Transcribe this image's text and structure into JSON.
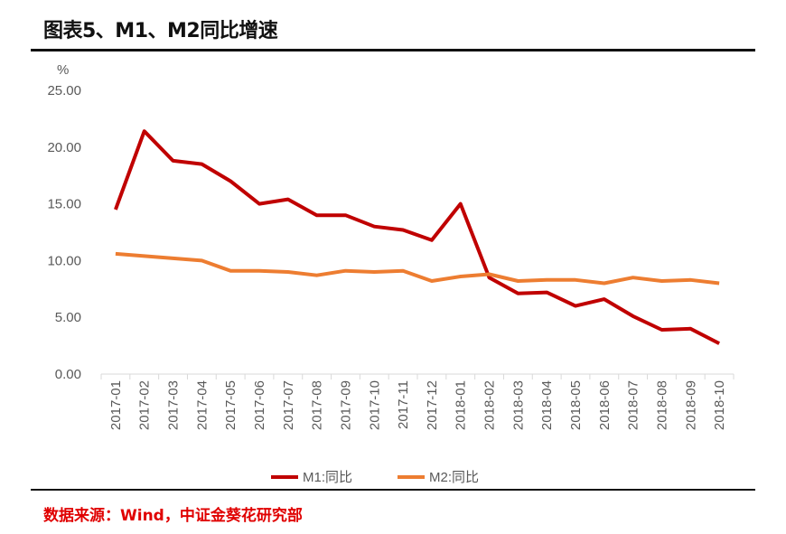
{
  "title": "图表5、M1、M2同比增速",
  "source": "数据来源：Wind，中证金葵花研究部",
  "chart_data": {
    "type": "line",
    "title": "图表5、M1、M2同比增速",
    "ylabel": "%",
    "xlabel": "",
    "ylim": [
      0,
      25
    ],
    "yticks": [
      "0.00",
      "5.00",
      "10.00",
      "15.00",
      "20.00",
      "25.00"
    ],
    "grid": false,
    "legend": "bottom",
    "categories": [
      "2017-01",
      "2017-02",
      "2017-03",
      "2017-04",
      "2017-05",
      "2017-06",
      "2017-07",
      "2017-08",
      "2017-09",
      "2017-10",
      "2017-11",
      "2017-12",
      "2018-01",
      "2018-02",
      "2018-03",
      "2018-04",
      "2018-05",
      "2018-06",
      "2018-07",
      "2018-08",
      "2018-09",
      "2018-10"
    ],
    "series": [
      {
        "name": "M1:同比",
        "color": "#c00000",
        "values": [
          14.5,
          21.4,
          18.8,
          18.5,
          17.0,
          15.0,
          15.4,
          14.0,
          14.0,
          13.0,
          12.7,
          11.8,
          15.0,
          8.5,
          7.1,
          7.2,
          6.0,
          6.6,
          5.1,
          3.9,
          4.0,
          2.7
        ]
      },
      {
        "name": "M2:同比",
        "color": "#ed7d31",
        "values": [
          10.6,
          10.4,
          10.2,
          10.0,
          9.1,
          9.1,
          9.0,
          8.7,
          9.1,
          9.0,
          9.1,
          8.2,
          8.6,
          8.8,
          8.2,
          8.3,
          8.3,
          8.0,
          8.5,
          8.2,
          8.3,
          8.0
        ]
      }
    ]
  }
}
